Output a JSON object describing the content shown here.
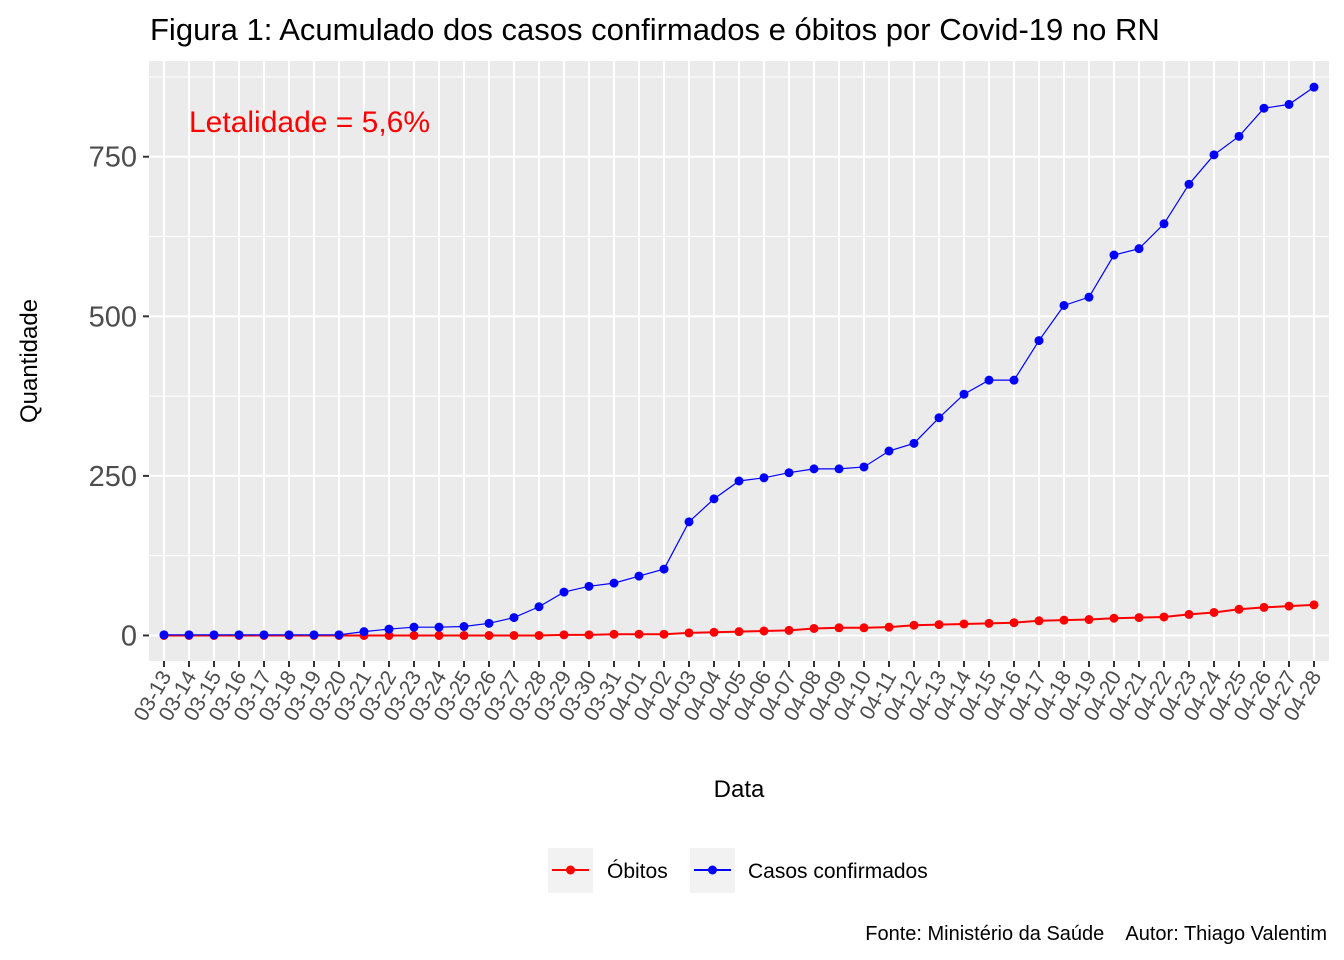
{
  "chart_data": {
    "type": "line",
    "title": "Figura 1: Acumulado dos casos confirmados e óbitos por Covid-19 no RN",
    "xlabel": "Data",
    "ylabel": "Quantidade",
    "ylim": [
      -40,
      900
    ],
    "y_ticks": [
      0,
      250,
      500,
      750
    ],
    "y_tick_labels": [
      "0",
      "250",
      "500",
      "750"
    ],
    "grid": true,
    "legend_position": "bottom",
    "categories": [
      "03-13",
      "03-14",
      "03-15",
      "03-16",
      "03-17",
      "03-18",
      "03-19",
      "03-20",
      "03-21",
      "03-22",
      "03-23",
      "03-24",
      "03-25",
      "03-26",
      "03-27",
      "03-28",
      "03-29",
      "03-30",
      "03-31",
      "04-01",
      "04-02",
      "04-03",
      "04-04",
      "04-05",
      "04-06",
      "04-07",
      "04-08",
      "04-09",
      "04-10",
      "04-11",
      "04-12",
      "04-13",
      "04-14",
      "04-15",
      "04-16",
      "04-17",
      "04-18",
      "04-19",
      "04-20",
      "04-21",
      "04-22",
      "04-23",
      "04-24",
      "04-25",
      "04-26",
      "04-27",
      "04-28"
    ],
    "series": [
      {
        "name": "Óbitos",
        "color": "#ff0000",
        "values": [
          0,
          0,
          0,
          0,
          0,
          0,
          0,
          0,
          0,
          0,
          0,
          0,
          0,
          0,
          0,
          0,
          1,
          1,
          2,
          2,
          2,
          4,
          5,
          6,
          7,
          8,
          11,
          12,
          12,
          13,
          16,
          17,
          18,
          19,
          20,
          23,
          24,
          25,
          27,
          28,
          29,
          33,
          36,
          41,
          44,
          46,
          48
        ]
      },
      {
        "name": "Casos confirmados",
        "color": "#0000ff",
        "values": [
          1,
          1,
          1,
          1,
          1,
          1,
          1,
          1,
          6,
          10,
          13,
          13,
          14,
          19,
          28,
          45,
          68,
          77,
          82,
          93,
          104,
          178,
          214,
          242,
          247,
          255,
          261,
          261,
          264,
          289,
          301,
          341,
          378,
          400,
          400,
          462,
          517,
          530,
          596,
          606,
          645,
          707,
          753,
          782,
          826,
          832,
          859
        ]
      }
    ],
    "annotation": {
      "text": "Letalidade = 5,6%",
      "color": "#ff0000"
    },
    "caption": "Fonte: Ministério da Saúde    Autor: Thiago Valentim"
  }
}
